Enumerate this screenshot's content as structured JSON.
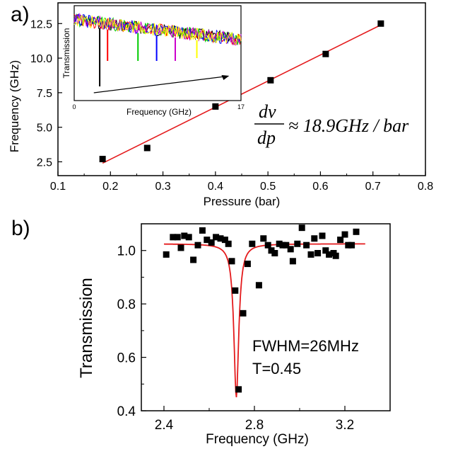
{
  "panels": {
    "a_label": "a)",
    "b_label": "b)"
  },
  "annotations": {
    "formula_num": "dν",
    "formula_den": "dp",
    "formula_rhs": "≈ 18.9GHz / bar",
    "fwhm": "FWHM=26MHz",
    "t_value": "T=0.45"
  },
  "colors": {
    "fit_line": "#e41a1c",
    "markers": "#000000"
  },
  "chart_data": [
    {
      "type": "scatter",
      "title": "",
      "xlabel": "Pressure (bar)",
      "ylabel": "Frequency (GHz)",
      "xlim": [
        0.1,
        0.8
      ],
      "ylim": [
        1.5,
        14
      ],
      "x_ticks": [
        "0.1",
        "0.2",
        "0.3",
        "0.4",
        "0.5",
        "0.6",
        "0.7",
        "0.8"
      ],
      "y_ticks": [
        "2.5",
        "5.0",
        "7.5",
        "10.0",
        "12.5"
      ],
      "series": [
        {
          "x": [
            0.185,
            0.27,
            0.4,
            0.505,
            0.61,
            0.715
          ],
          "y": [
            2.7,
            3.5,
            6.5,
            8.4,
            10.3,
            12.5
          ]
        }
      ],
      "fit_line": {
        "x": [
          0.185,
          0.715
        ],
        "y": [
          2.4,
          12.4
        ]
      },
      "grid": false
    },
    {
      "type": "line",
      "title": "",
      "xlabel": "Frequency (GHz)",
      "ylabel": "Transmission",
      "xlim": [
        0,
        17
      ],
      "x_ticks": [
        "0",
        "17"
      ],
      "series": [
        {
          "color": "#000000",
          "dip_x": 2.6
        },
        {
          "color": "#ff0000",
          "dip_x": 3.4
        },
        {
          "color": "#00cc00",
          "dip_x": 6.5
        },
        {
          "color": "#0000ff",
          "dip_x": 8.4
        },
        {
          "color": "#cc00cc",
          "dip_x": 10.3
        },
        {
          "color": "#ffff00",
          "dip_x": 12.5
        }
      ],
      "arrow": {
        "from_x": 2.0,
        "to_x": 15.8
      }
    },
    {
      "type": "scatter",
      "title": "",
      "xlabel": "Frequency (GHz)",
      "ylabel": "Transmission",
      "xlim": [
        2.3,
        3.4
      ],
      "ylim": [
        0.4,
        1.1
      ],
      "x_ticks": [
        "2.4",
        "2.8",
        "3.2"
      ],
      "y_ticks": [
        "0.4",
        "0.6",
        "0.8",
        "1.0"
      ],
      "series": [
        {
          "x": [
            2.41,
            2.44,
            2.46,
            2.475,
            2.49,
            2.51,
            2.53,
            2.55,
            2.57,
            2.59,
            2.61,
            2.63,
            2.65,
            2.67,
            2.685,
            2.7,
            2.715,
            2.73,
            2.75,
            2.77,
            2.79,
            2.82,
            2.84,
            2.86,
            2.875,
            2.89,
            2.91,
            2.925,
            2.94,
            2.96,
            2.97,
            2.99,
            3.01,
            3.03,
            3.05,
            3.065,
            3.08,
            3.1,
            3.115,
            3.13,
            3.15,
            3.16,
            3.18,
            3.2,
            3.215,
            3.23,
            3.25
          ],
          "y": [
            0.985,
            1.05,
            1.05,
            1.01,
            1.055,
            1.05,
            0.965,
            1.02,
            1.075,
            1.04,
            1.03,
            1.05,
            1.045,
            1.04,
            1.025,
            0.96,
            0.85,
            0.48,
            0.765,
            0.95,
            1.025,
            0.87,
            1.045,
            1.02,
            1.0,
            0.99,
            1.025,
            1.02,
            1.02,
            1.005,
            0.96,
            1.025,
            1.085,
            1.02,
            0.985,
            1.045,
            0.99,
            1.055,
            1.0,
            0.985,
            0.99,
            0.98,
            1.04,
            1.06,
            1.02,
            1.02,
            1.07
          ]
        }
      ],
      "fit": {
        "type": "lorentzian",
        "center": 2.72,
        "baseline": 1.025,
        "min": 0.45
      },
      "grid": false
    }
  ]
}
